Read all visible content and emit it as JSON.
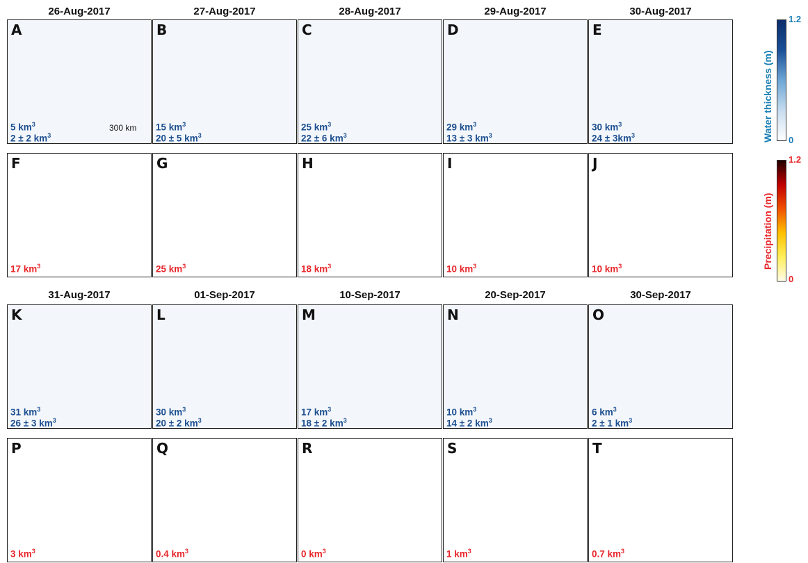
{
  "dates_top": [
    "26-Aug-2017",
    "27-Aug-2017",
    "28-Aug-2017",
    "29-Aug-2017",
    "30-Aug-2017"
  ],
  "dates_bottom": [
    "31-Aug-2017",
    "01-Sep-2017",
    "10-Sep-2017",
    "20-Sep-2017",
    "30-Sep-2017"
  ],
  "water_panels": [
    {
      "label": "A",
      "vol1": "5 km",
      "vol2": "2 ± 2 km"
    },
    {
      "label": "B",
      "vol1": "15 km",
      "vol2": "20 ± 5 km"
    },
    {
      "label": "C",
      "vol1": "25 km",
      "vol2": "22 ± 6 km"
    },
    {
      "label": "D",
      "vol1": "29 km",
      "vol2": "13 ± 3 km"
    },
    {
      "label": "E",
      "vol1": "30 km",
      "vol2": "24 ± 3km"
    },
    {
      "label": "K",
      "vol1": "31 km",
      "vol2": "26 ± 3 km"
    },
    {
      "label": "L",
      "vol1": "30 km",
      "vol2": "20 ± 2 km"
    },
    {
      "label": "M",
      "vol1": "17 km",
      "vol2": "18 ± 2 km"
    },
    {
      "label": "N",
      "vol1": "10  km",
      "vol2": "14 ± 2 km"
    },
    {
      "label": "O",
      "vol1": "6 km",
      "vol2": "2 ± 1 km"
    }
  ],
  "precip_panels": [
    {
      "label": "F",
      "vol": "17 km"
    },
    {
      "label": "G",
      "vol": "25 km"
    },
    {
      "label": "H",
      "vol": "18 km"
    },
    {
      "label": "I",
      "vol": "10 km"
    },
    {
      "label": "J",
      "vol": "10 km"
    },
    {
      "label": "P",
      "vol": "3 km"
    },
    {
      "label": "Q",
      "vol": "0.4 km"
    },
    {
      "label": "R",
      "vol": "0 km"
    },
    {
      "label": "S",
      "vol": "1 km"
    },
    {
      "label": "T",
      "vol": "0.7 km"
    }
  ],
  "sup3": "3",
  "scale_bar": "300 km",
  "colorbar_water": {
    "title": "Water thickness (m)",
    "max": "1.2",
    "min": "0",
    "color": "#1a7fb5"
  },
  "colorbar_precip": {
    "title": "Precipitation (m)",
    "max": "1.2",
    "min": "0",
    "color": "#e8262a"
  }
}
